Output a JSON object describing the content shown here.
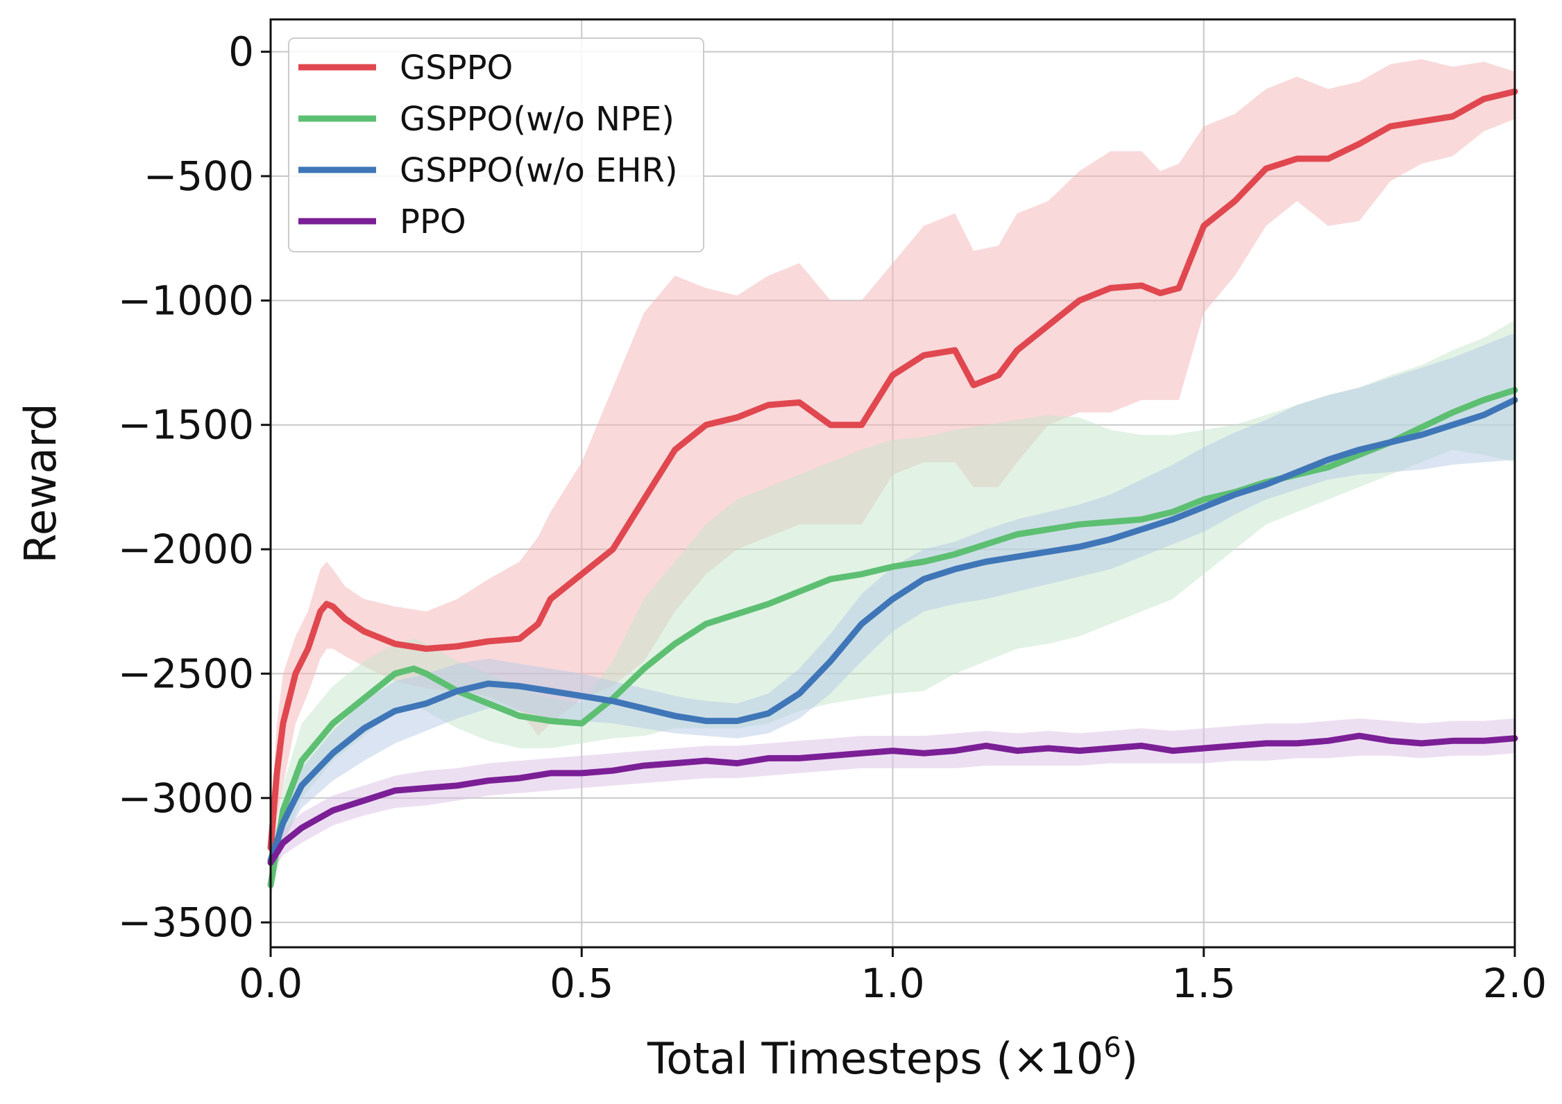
{
  "chart_data": {
    "type": "line",
    "title": "",
    "xlabel_prefix": "Total Timesteps (×10",
    "xlabel_exp": "6",
    "xlabel_suffix": ")",
    "ylabel": "Reward",
    "xlim": [
      0.0,
      2.0
    ],
    "ylim": [
      -3600,
      130
    ],
    "xticks": [
      0.0,
      0.5,
      1.0,
      1.5,
      2.0
    ],
    "xtick_labels": [
      "0.0",
      "0.5",
      "1.0",
      "1.5",
      "2.0"
    ],
    "yticks": [
      0,
      -500,
      -1000,
      -1500,
      -2000,
      -2500,
      -3000,
      -3500
    ],
    "ytick_labels": [
      "0",
      "−500",
      "−1000",
      "−1500",
      "−2000",
      "−2500",
      "−3000",
      "−3500"
    ],
    "grid": true,
    "legend_position": "top-left",
    "series": [
      {
        "name": "GSPPO",
        "color": "#e0474f",
        "fill": "#f4b3b5",
        "x": [
          0.0,
          0.01,
          0.02,
          0.04,
          0.06,
          0.08,
          0.09,
          0.1,
          0.12,
          0.15,
          0.2,
          0.25,
          0.3,
          0.35,
          0.4,
          0.43,
          0.45,
          0.5,
          0.55,
          0.6,
          0.65,
          0.7,
          0.75,
          0.8,
          0.85,
          0.9,
          0.95,
          1.0,
          1.05,
          1.1,
          1.13,
          1.17,
          1.2,
          1.25,
          1.3,
          1.35,
          1.4,
          1.43,
          1.46,
          1.5,
          1.55,
          1.6,
          1.65,
          1.7,
          1.75,
          1.8,
          1.85,
          1.9,
          1.95,
          2.0
        ],
        "y": [
          -3200,
          -2900,
          -2700,
          -2500,
          -2400,
          -2250,
          -2220,
          -2230,
          -2280,
          -2330,
          -2380,
          -2400,
          -2390,
          -2370,
          -2360,
          -2300,
          -2200,
          -2100,
          -2000,
          -1800,
          -1600,
          -1500,
          -1470,
          -1420,
          -1410,
          -1500,
          -1500,
          -1300,
          -1220,
          -1200,
          -1340,
          -1300,
          -1200,
          -1100,
          -1000,
          -950,
          -940,
          -970,
          -950,
          -700,
          -600,
          -470,
          -430,
          -430,
          -370,
          -300,
          -280,
          -260,
          -190,
          -160
        ],
        "lower": [
          -3300,
          -3100,
          -2950,
          -2700,
          -2580,
          -2440,
          -2400,
          -2400,
          -2430,
          -2470,
          -2530,
          -2560,
          -2570,
          -2590,
          -2650,
          -2750,
          -2700,
          -2600,
          -2550,
          -2450,
          -2250,
          -2100,
          -2000,
          -1950,
          -1900,
          -1900,
          -1900,
          -1700,
          -1650,
          -1650,
          -1750,
          -1750,
          -1650,
          -1500,
          -1450,
          -1450,
          -1400,
          -1400,
          -1400,
          -1050,
          -900,
          -700,
          -600,
          -700,
          -680,
          -520,
          -450,
          -420,
          -320,
          -270
        ],
        "upper": [
          -3100,
          -2700,
          -2500,
          -2350,
          -2250,
          -2080,
          -2050,
          -2080,
          -2150,
          -2200,
          -2230,
          -2250,
          -2200,
          -2120,
          -2050,
          -1950,
          -1850,
          -1650,
          -1350,
          -1050,
          -900,
          -950,
          -980,
          -900,
          -850,
          -1000,
          -1000,
          -850,
          -700,
          -650,
          -800,
          -780,
          -650,
          -600,
          -480,
          -400,
          -400,
          -480,
          -450,
          -300,
          -250,
          -150,
          -100,
          -150,
          -120,
          -50,
          -30,
          -60,
          -40,
          -80
        ]
      },
      {
        "name": "GSPPO(w/o NPE)",
        "color": "#5dbf72",
        "fill": "#c6e6cc",
        "x": [
          0.0,
          0.02,
          0.05,
          0.1,
          0.15,
          0.2,
          0.23,
          0.25,
          0.3,
          0.35,
          0.4,
          0.45,
          0.5,
          0.55,
          0.6,
          0.65,
          0.7,
          0.75,
          0.8,
          0.85,
          0.9,
          0.95,
          1.0,
          1.05,
          1.1,
          1.15,
          1.2,
          1.25,
          1.3,
          1.35,
          1.4,
          1.45,
          1.5,
          1.55,
          1.6,
          1.65,
          1.7,
          1.75,
          1.8,
          1.85,
          1.9,
          1.95,
          2.0
        ],
        "y": [
          -3350,
          -3050,
          -2850,
          -2700,
          -2600,
          -2500,
          -2480,
          -2500,
          -2570,
          -2620,
          -2670,
          -2690,
          -2700,
          -2600,
          -2480,
          -2380,
          -2300,
          -2260,
          -2220,
          -2170,
          -2120,
          -2100,
          -2070,
          -2050,
          -2020,
          -1980,
          -1940,
          -1920,
          -1900,
          -1890,
          -1880,
          -1850,
          -1800,
          -1770,
          -1730,
          -1700,
          -1670,
          -1620,
          -1570,
          -1510,
          -1450,
          -1400,
          -1360
        ],
        "lower": [
          -3400,
          -3200,
          -3000,
          -2850,
          -2750,
          -2650,
          -2620,
          -2650,
          -2720,
          -2770,
          -2800,
          -2800,
          -2780,
          -2760,
          -2750,
          -2720,
          -2720,
          -2720,
          -2700,
          -2650,
          -2620,
          -2600,
          -2580,
          -2570,
          -2500,
          -2450,
          -2400,
          -2380,
          -2350,
          -2300,
          -2250,
          -2200,
          -2100,
          -2000,
          -1900,
          -1850,
          -1800,
          -1750,
          -1700,
          -1650,
          -1600,
          -1620,
          -1650
        ],
        "upper": [
          -3300,
          -2950,
          -2700,
          -2550,
          -2450,
          -2380,
          -2360,
          -2380,
          -2450,
          -2500,
          -2560,
          -2600,
          -2620,
          -2450,
          -2200,
          -2050,
          -1900,
          -1800,
          -1750,
          -1700,
          -1650,
          -1600,
          -1560,
          -1550,
          -1520,
          -1500,
          -1480,
          -1460,
          -1470,
          -1520,
          -1540,
          -1540,
          -1520,
          -1500,
          -1460,
          -1420,
          -1380,
          -1350,
          -1300,
          -1260,
          -1200,
          -1150,
          -1080
        ]
      },
      {
        "name": "GSPPO(w/o EHR)",
        "color": "#3f76b8",
        "fill": "#b5c9e5",
        "x": [
          0.0,
          0.02,
          0.05,
          0.1,
          0.15,
          0.2,
          0.25,
          0.3,
          0.35,
          0.4,
          0.45,
          0.5,
          0.55,
          0.6,
          0.65,
          0.7,
          0.75,
          0.8,
          0.85,
          0.9,
          0.95,
          1.0,
          1.05,
          1.1,
          1.15,
          1.2,
          1.25,
          1.3,
          1.35,
          1.4,
          1.45,
          1.5,
          1.55,
          1.6,
          1.65,
          1.7,
          1.75,
          1.8,
          1.85,
          1.9,
          1.95,
          2.0
        ],
        "y": [
          -3250,
          -3100,
          -2950,
          -2820,
          -2720,
          -2650,
          -2620,
          -2570,
          -2540,
          -2550,
          -2570,
          -2590,
          -2610,
          -2640,
          -2670,
          -2690,
          -2690,
          -2660,
          -2580,
          -2450,
          -2300,
          -2200,
          -2120,
          -2080,
          -2050,
          -2030,
          -2010,
          -1990,
          -1960,
          -1920,
          -1880,
          -1830,
          -1780,
          -1740,
          -1690,
          -1640,
          -1600,
          -1570,
          -1540,
          -1500,
          -1460,
          -1400
        ],
        "lower": [
          -3300,
          -3170,
          -3040,
          -2930,
          -2850,
          -2780,
          -2730,
          -2680,
          -2640,
          -2650,
          -2680,
          -2690,
          -2700,
          -2720,
          -2740,
          -2750,
          -2760,
          -2740,
          -2680,
          -2580,
          -2450,
          -2330,
          -2250,
          -2220,
          -2200,
          -2170,
          -2140,
          -2110,
          -2080,
          -2030,
          -1980,
          -1930,
          -1860,
          -1800,
          -1760,
          -1720,
          -1700,
          -1690,
          -1680,
          -1660,
          -1650,
          -1640
        ],
        "upper": [
          -3200,
          -3030,
          -2880,
          -2730,
          -2610,
          -2530,
          -2500,
          -2460,
          -2440,
          -2460,
          -2480,
          -2500,
          -2530,
          -2560,
          -2590,
          -2610,
          -2620,
          -2580,
          -2480,
          -2340,
          -2180,
          -2070,
          -2000,
          -1970,
          -1920,
          -1880,
          -1850,
          -1820,
          -1780,
          -1720,
          -1660,
          -1590,
          -1530,
          -1480,
          -1420,
          -1380,
          -1350,
          -1310,
          -1270,
          -1230,
          -1180,
          -1130
        ]
      },
      {
        "name": "PPO",
        "color": "#7b1f96",
        "fill": "#dcbfe6",
        "x": [
          0.0,
          0.02,
          0.05,
          0.1,
          0.15,
          0.2,
          0.25,
          0.3,
          0.35,
          0.4,
          0.45,
          0.5,
          0.55,
          0.6,
          0.65,
          0.7,
          0.75,
          0.8,
          0.85,
          0.9,
          0.95,
          1.0,
          1.05,
          1.1,
          1.15,
          1.2,
          1.25,
          1.3,
          1.35,
          1.4,
          1.45,
          1.5,
          1.55,
          1.6,
          1.65,
          1.7,
          1.75,
          1.8,
          1.85,
          1.9,
          1.95,
          2.0
        ],
        "y": [
          -3260,
          -3180,
          -3120,
          -3050,
          -3010,
          -2970,
          -2960,
          -2950,
          -2930,
          -2920,
          -2900,
          -2900,
          -2890,
          -2870,
          -2860,
          -2850,
          -2860,
          -2840,
          -2840,
          -2830,
          -2820,
          -2810,
          -2820,
          -2810,
          -2790,
          -2810,
          -2800,
          -2810,
          -2800,
          -2790,
          -2810,
          -2800,
          -2790,
          -2780,
          -2780,
          -2770,
          -2750,
          -2770,
          -2780,
          -2770,
          -2770,
          -2760
        ],
        "lower": [
          -3300,
          -3230,
          -3180,
          -3110,
          -3070,
          -3040,
          -3030,
          -3010,
          -2990,
          -2980,
          -2970,
          -2960,
          -2950,
          -2940,
          -2930,
          -2920,
          -2920,
          -2910,
          -2900,
          -2890,
          -2880,
          -2880,
          -2880,
          -2880,
          -2870,
          -2870,
          -2870,
          -2870,
          -2860,
          -2860,
          -2860,
          -2860,
          -2850,
          -2850,
          -2840,
          -2840,
          -2830,
          -2830,
          -2840,
          -2830,
          -2830,
          -2820
        ],
        "upper": [
          -3220,
          -3130,
          -3060,
          -2990,
          -2950,
          -2910,
          -2890,
          -2880,
          -2860,
          -2850,
          -2840,
          -2830,
          -2820,
          -2810,
          -2800,
          -2790,
          -2790,
          -2780,
          -2770,
          -2760,
          -2750,
          -2750,
          -2750,
          -2740,
          -2730,
          -2740,
          -2730,
          -2740,
          -2730,
          -2720,
          -2730,
          -2720,
          -2710,
          -2700,
          -2700,
          -2690,
          -2680,
          -2690,
          -2700,
          -2690,
          -2690,
          -2680
        ]
      }
    ]
  }
}
